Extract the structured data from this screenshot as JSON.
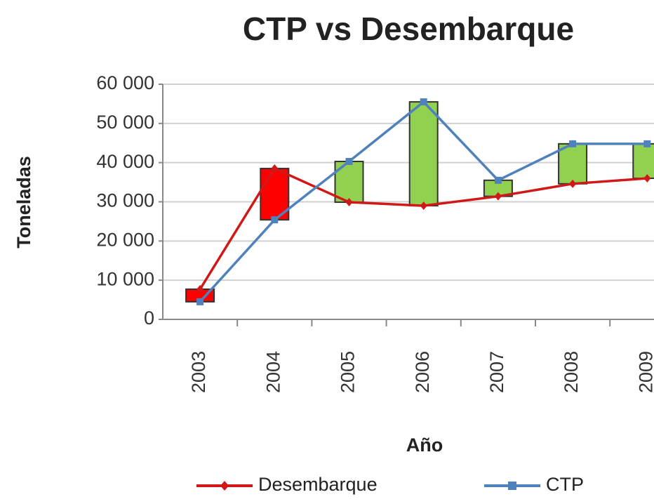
{
  "chart_data": {
    "type": "line",
    "title": "CTP vs Desembarque",
    "x_label": "Año",
    "y_label": "Toneladas",
    "categories": [
      "2003",
      "2004",
      "2005",
      "2006",
      "2007",
      "2008",
      "2009"
    ],
    "series": [
      {
        "name": "Desembarque",
        "color": "#d01818",
        "marker": "diamond",
        "values": [
          7700,
          38500,
          29900,
          29000,
          31400,
          34600,
          36000
        ]
      },
      {
        "name": "CTP",
        "color": "#4f81bd",
        "marker": "square",
        "values": [
          4500,
          25400,
          40300,
          55500,
          35500,
          44800,
          44800
        ]
      }
    ],
    "up_bar_color": "#92d050",
    "down_bar_color": "#ff0000",
    "ylim": [
      0,
      60000
    ],
    "yticks": [
      {
        "value": 0,
        "label": "0"
      },
      {
        "value": 10000,
        "label": "10 000"
      },
      {
        "value": 20000,
        "label": "20 000"
      },
      {
        "value": 30000,
        "label": "30 000"
      },
      {
        "value": 40000,
        "label": "40 000"
      },
      {
        "value": 50000,
        "label": "50 000"
      },
      {
        "value": 60000,
        "label": "60 000"
      }
    ],
    "grid": true,
    "legend_position": "bottom"
  }
}
